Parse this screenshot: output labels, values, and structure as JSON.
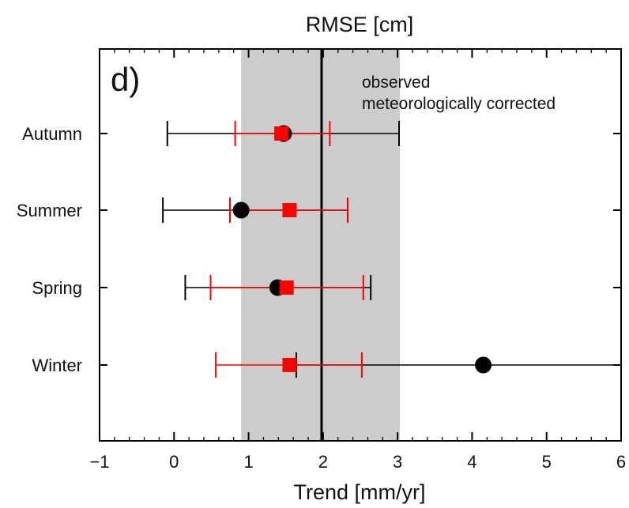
{
  "chart_data": {
    "type": "scatter",
    "title": "RMSE [cm]",
    "panel_label": "d)",
    "xlabel": "Trend [mm/yr]",
    "ylabel": "",
    "xlim": [
      -1,
      6
    ],
    "x_ticks": [
      -1,
      0,
      1,
      2,
      3,
      4,
      5,
      6
    ],
    "x_tick_labels": [
      "−1",
      "0",
      "1",
      "2",
      "3",
      "4",
      "5",
      "6"
    ],
    "categories": [
      "Autumn",
      "Summer",
      "Spring",
      "Winter"
    ],
    "shaded_band": [
      0.9,
      3.03
    ],
    "reference_line": 1.98,
    "legend_placement": "top-right",
    "series": [
      {
        "name": "observed",
        "color": "#000000",
        "marker": "circle",
        "values": [
          1.47,
          0.9,
          1.39,
          4.15
        ],
        "lower": [
          -0.09,
          -0.15,
          0.15,
          1.64
        ],
        "upper": [
          3.02,
          2.33,
          2.64,
          6.2
        ]
      },
      {
        "name": "meteorologically corrected",
        "color": "#ff0000",
        "marker": "square",
        "values": [
          1.44,
          1.55,
          1.51,
          1.55
        ],
        "lower": [
          0.82,
          0.75,
          0.49,
          0.56
        ],
        "upper": [
          2.09,
          2.33,
          2.54,
          2.52
        ]
      }
    ]
  }
}
